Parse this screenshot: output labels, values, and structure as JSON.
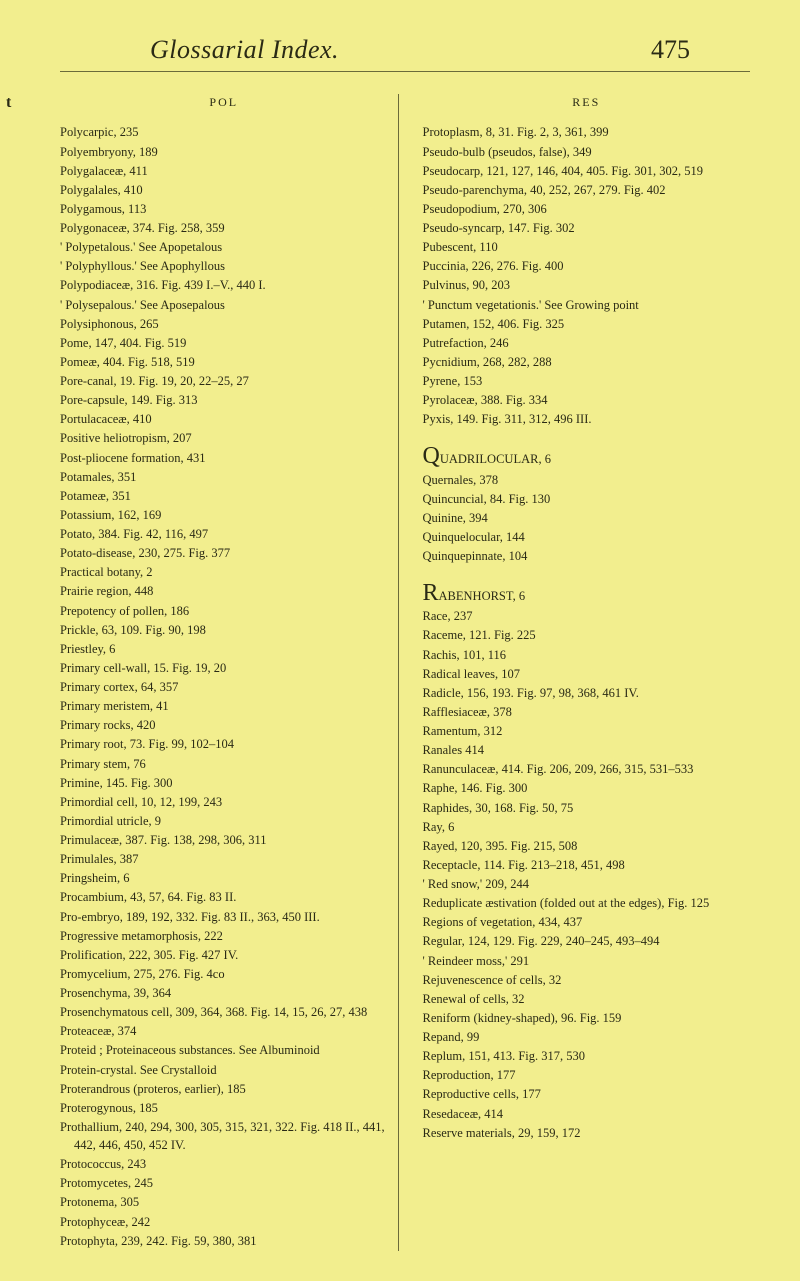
{
  "header": {
    "title": "Glossarial Index.",
    "page_number": "475"
  },
  "margin_marker": "t",
  "left_column": {
    "header": "POL",
    "entries": [
      "Polycarpic, 235",
      "Polyembryony, 189",
      "Polygalaceæ, 411",
      "Polygalales, 410",
      "Polygamous, 113",
      "Polygonaceæ, 374. Fig. 258, 359",
      "' Polypetalous.' See Apopetalous",
      "' Polyphyllous.' See Apophyllous",
      "Polypodiaceæ, 316. Fig. 439 I.–V., 440 I.",
      "' Polysepalous.' See Aposepalous",
      "Polysiphonous, 265",
      "Pome, 147, 404. Fig. 519",
      "Pomeæ, 404. Fig. 518, 519",
      "Pore-canal, 19. Fig. 19, 20, 22–25, 27",
      "Pore-capsule, 149. Fig. 313",
      "Portulacaceæ, 410",
      "Positive heliotropism, 207",
      "Post-pliocene formation, 431",
      "Potamales, 351",
      "Potameæ, 351",
      "Potassium, 162, 169",
      "Potato, 384. Fig. 42, 116, 497",
      "Potato-disease, 230, 275. Fig. 377",
      "Practical botany, 2",
      "Prairie region, 448",
      "Prepotency of pollen, 186",
      "Prickle, 63, 109. Fig. 90, 198",
      "Priestley, 6",
      "Primary cell-wall, 15. Fig. 19, 20",
      "Primary cortex, 64, 357",
      "Primary meristem, 41",
      "Primary rocks, 420",
      "Primary root, 73. Fig. 99, 102–104",
      "Primary stem, 76",
      "Primine, 145. Fig. 300",
      "Primordial cell, 10, 12, 199, 243",
      "Primordial utricle, 9",
      "Primulaceæ, 387. Fig. 138, 298, 306, 311",
      "Primulales, 387",
      "Pringsheim, 6",
      "Procambium, 43, 57, 64. Fig. 83 II.",
      "Pro-embryo, 189, 192, 332. Fig. 83 II., 363, 450 III.",
      "Progressive metamorphosis, 222",
      "Prolification, 222, 305. Fig. 427 IV.",
      "Promycelium, 275, 276. Fig. 4co",
      "Prosenchyma, 39, 364",
      "Prosenchymatous cell, 309, 364, 368. Fig. 14, 15, 26, 27, 438",
      "Proteaceæ, 374",
      "Proteid ; Proteinaceous substances. See Albuminoid",
      "Protein-crystal. See Crystalloid",
      "Proterandrous (proteros, earlier), 185",
      "Proterogynous, 185",
      "Prothallium, 240, 294, 300, 305, 315, 321, 322. Fig. 418 II., 441, 442, 446, 450, 452 IV.",
      "Protococcus, 243",
      "Protomycetes, 245",
      "Protonema, 305",
      "Protophyceæ, 242",
      "Protophyta, 239, 242. Fig. 59, 380, 381"
    ]
  },
  "right_column": {
    "header": "RES",
    "entries_block1": [
      "Protoplasm, 8, 31. Fig. 2, 3, 361, 399",
      "Pseudo-bulb (pseudos, false), 349",
      "Pseudocarp, 121, 127, 146, 404, 405. Fig. 301, 302, 519",
      "Pseudo-parenchyma, 40, 252, 267, 279. Fig. 402",
      "Pseudopodium, 270, 306",
      "Pseudo-syncarp, 147. Fig. 302",
      "Pubescent, 110",
      "Puccinia, 226, 276. Fig. 400",
      "Pulvinus, 90, 203",
      "' Punctum vegetationis.' See Growing point",
      "Putamen, 152, 406. Fig. 325",
      "Putrefaction, 246",
      "Pycnidium, 268, 282, 288",
      "Pyrene, 153",
      "Pyrolaceæ, 388. Fig. 334",
      "Pyxis, 149. Fig. 311, 312, 496 III."
    ],
    "initial_q": {
      "letter": "Q",
      "first": "UADRILOCULAR, 6",
      "rest": [
        "Quernales, 378",
        "Quincuncial, 84. Fig. 130",
        "Quinine, 394",
        "Quinquelocular, 144",
        "Quinquepinnate, 104"
      ]
    },
    "initial_r": {
      "letter": "R",
      "first": "ABENHORST, 6",
      "rest": [
        "Race, 237",
        "Raceme, 121. Fig. 225",
        "Rachis, 101, 116",
        "Radical leaves, 107",
        "Radicle, 156, 193. Fig. 97, 98, 368, 461 IV.",
        "Rafflesiaceæ, 378",
        "Ramentum, 312",
        "Ranales 414",
        "Ranunculaceæ, 414. Fig. 206, 209, 266, 315, 531–533",
        "Raphe, 146. Fig. 300",
        "Raphides, 30, 168. Fig. 50, 75",
        "Ray, 6",
        "Rayed, 120, 395. Fig. 215, 508",
        "Receptacle, 114. Fig. 213–218, 451, 498",
        "' Red snow,' 209, 244",
        "Reduplicate æstivation (folded out at the edges), Fig. 125",
        "Regions of vegetation, 434, 437",
        "Regular, 124, 129. Fig. 229, 240–245, 493–494",
        "' Reindeer moss,' 291",
        "Rejuvenescence of cells, 32",
        "Renewal of cells, 32",
        "Reniform (kidney-shaped), 96. Fig. 159",
        "Repand, 99",
        "Replum, 151, 413. Fig. 317, 530",
        "Reproduction, 177",
        "Reproductive cells, 177",
        "Resedaceæ, 414",
        "Reserve materials, 29, 159, 172"
      ]
    }
  }
}
